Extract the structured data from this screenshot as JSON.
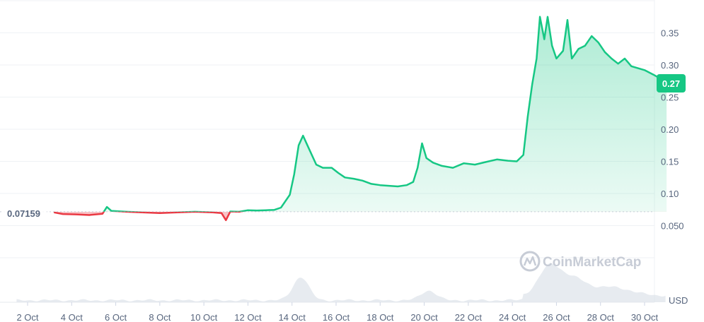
{
  "watermark": "CoinMarketCap",
  "colors": {
    "up": "#16c784",
    "down": "#ea3943",
    "grid": "#eff2f5",
    "tick": "#58667e",
    "volume": "#dde2ea"
  },
  "chart_data": {
    "type": "line",
    "x_axis": {
      "tick_labels": [
        "2 Oct",
        "4 Oct",
        "6 Oct",
        "8 Oct",
        "10 Oct",
        "12 Oct",
        "14 Oct",
        "16 Oct",
        "18 Oct",
        "20 Oct",
        "22 Oct",
        "24 Oct",
        "26 Oct",
        "28 Oct",
        "30 Oct"
      ],
      "range_days": [
        1.5,
        31.0
      ]
    },
    "y_axis": {
      "tick_values": [
        0.05,
        0.1,
        0.15,
        0.2,
        0.25,
        0.3,
        0.35
      ],
      "tick_labels": [
        "0.050",
        "0.10",
        "0.15",
        "0.20",
        "0.25",
        "0.30",
        "0.35"
      ],
      "unit_label": "USD",
      "position": "right",
      "ylim": [
        0.0,
        0.39
      ]
    },
    "baseline": {
      "value": 0.07159,
      "label": "0.07159"
    },
    "current": {
      "value": 0.27,
      "label": "0.27"
    },
    "grid": true,
    "series": [
      {
        "values": [
          [
            3.2,
            0.0705
          ],
          [
            3.6,
            0.068
          ],
          [
            4.2,
            0.0675
          ],
          [
            4.8,
            0.0665
          ],
          [
            5.4,
            0.0685
          ],
          [
            5.6,
            0.079
          ],
          [
            5.8,
            0.073
          ],
          [
            6.5,
            0.0715
          ],
          [
            7.2,
            0.0705
          ],
          [
            8.0,
            0.0695
          ],
          [
            8.8,
            0.0705
          ],
          [
            9.6,
            0.0715
          ],
          [
            10.4,
            0.0705
          ],
          [
            10.8,
            0.0695
          ],
          [
            11.0,
            0.0585
          ],
          [
            11.2,
            0.072
          ],
          [
            11.6,
            0.0715
          ],
          [
            12.0,
            0.074
          ],
          [
            12.4,
            0.0735
          ],
          [
            12.8,
            0.074
          ],
          [
            13.2,
            0.0745
          ],
          [
            13.5,
            0.078
          ],
          [
            13.9,
            0.098
          ],
          [
            14.1,
            0.13
          ],
          [
            14.3,
            0.175
          ],
          [
            14.5,
            0.19
          ],
          [
            14.7,
            0.175
          ],
          [
            14.9,
            0.16
          ],
          [
            15.1,
            0.145
          ],
          [
            15.4,
            0.14
          ],
          [
            15.8,
            0.14
          ],
          [
            16.1,
            0.132
          ],
          [
            16.4,
            0.125
          ],
          [
            16.8,
            0.123
          ],
          [
            17.2,
            0.12
          ],
          [
            17.6,
            0.115
          ],
          [
            18.0,
            0.113
          ],
          [
            18.4,
            0.112
          ],
          [
            18.8,
            0.111
          ],
          [
            19.2,
            0.113
          ],
          [
            19.5,
            0.118
          ],
          [
            19.7,
            0.14
          ],
          [
            19.9,
            0.178
          ],
          [
            20.1,
            0.155
          ],
          [
            20.4,
            0.148
          ],
          [
            20.8,
            0.143
          ],
          [
            21.3,
            0.14
          ],
          [
            21.8,
            0.147
          ],
          [
            22.3,
            0.145
          ],
          [
            22.8,
            0.149
          ],
          [
            23.3,
            0.153
          ],
          [
            23.8,
            0.151
          ],
          [
            24.2,
            0.15
          ],
          [
            24.5,
            0.16
          ],
          [
            24.7,
            0.22
          ],
          [
            24.9,
            0.27
          ],
          [
            25.1,
            0.31
          ],
          [
            25.25,
            0.375
          ],
          [
            25.45,
            0.34
          ],
          [
            25.6,
            0.375
          ],
          [
            25.8,
            0.33
          ],
          [
            26.0,
            0.31
          ],
          [
            26.3,
            0.322
          ],
          [
            26.5,
            0.37
          ],
          [
            26.7,
            0.31
          ],
          [
            27.0,
            0.325
          ],
          [
            27.3,
            0.33
          ],
          [
            27.6,
            0.345
          ],
          [
            27.9,
            0.335
          ],
          [
            28.2,
            0.32
          ],
          [
            28.5,
            0.31
          ],
          [
            28.8,
            0.302
          ],
          [
            29.1,
            0.31
          ],
          [
            29.4,
            0.298
          ],
          [
            29.7,
            0.295
          ],
          [
            30.0,
            0.292
          ],
          [
            30.4,
            0.285
          ],
          [
            30.7,
            0.279
          ],
          [
            31.0,
            0.27
          ]
        ]
      }
    ],
    "volume": {
      "peaks": [
        {
          "day": 14.4,
          "height": 0.6,
          "width": 0.5
        },
        {
          "day": 20.2,
          "height": 0.25,
          "width": 0.5
        },
        {
          "day": 25.7,
          "height": 0.75,
          "width": 0.7
        },
        {
          "day": 26.8,
          "height": 0.4,
          "width": 0.8
        },
        {
          "day": 28.5,
          "height": 0.22,
          "width": 1.2
        }
      ]
    }
  }
}
